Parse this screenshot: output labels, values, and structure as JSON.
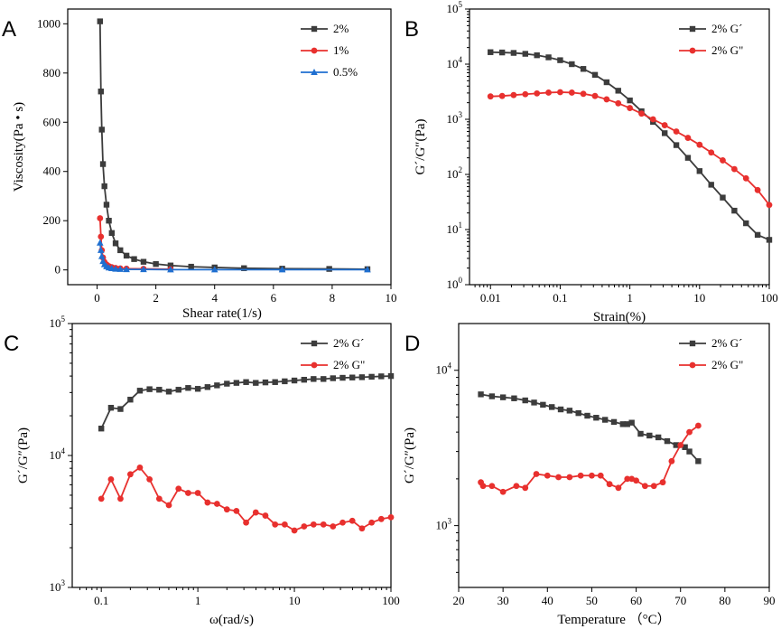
{
  "colors": {
    "black": "#3c3c3c",
    "red": "#e8302e",
    "blue": "#1f6fd0"
  },
  "chart_data": [
    {
      "panel": "A",
      "type": "line",
      "xlabel": "Shear rate(1/s)",
      "ylabel": "Viscosity(Pa • s)",
      "xscale": "linear",
      "yscale": "linear",
      "xlim": [
        -1,
        10
      ],
      "ylim": [
        -60,
        1060
      ],
      "xticks": [
        0,
        2,
        4,
        6,
        8,
        10
      ],
      "xticklabels": [
        "0",
        "2",
        "4",
        "6",
        "8",
        "10"
      ],
      "yticks": [
        0,
        200,
        400,
        600,
        800,
        1000
      ],
      "yticklabels": [
        "0",
        "200",
        "400",
        "600",
        "800",
        "1000"
      ],
      "legend_position": "top-right",
      "series": [
        {
          "name": "2%",
          "color": "#3c3c3c",
          "marker": "square",
          "x": [
            0.1,
            0.13,
            0.16,
            0.2,
            0.25,
            0.32,
            0.4,
            0.5,
            0.63,
            0.79,
            1.0,
            1.26,
            1.58,
            2.0,
            2.5,
            3.2,
            4.0,
            5.0,
            6.3,
            7.9,
            9.2
          ],
          "y": [
            1010,
            725,
            570,
            430,
            340,
            265,
            200,
            150,
            108,
            80,
            58,
            44,
            33,
            24,
            18,
            13,
            10,
            7,
            5,
            4,
            3
          ]
        },
        {
          "name": "1%",
          "color": "#e8302e",
          "marker": "circle",
          "x": [
            0.1,
            0.13,
            0.16,
            0.2,
            0.25,
            0.32,
            0.4,
            0.5,
            0.63,
            0.79,
            1.0,
            1.58,
            2.5
          ],
          "y": [
            210,
            135,
            80,
            50,
            32,
            22,
            15,
            11,
            8,
            6,
            5,
            4,
            3
          ]
        },
        {
          "name": "0.5%",
          "color": "#1f6fd0",
          "marker": "triangle",
          "x": [
            0.1,
            0.13,
            0.16,
            0.2,
            0.25,
            0.32,
            0.4,
            0.5,
            0.63,
            0.79,
            1.0,
            1.58,
            2.5,
            4.0,
            6.3,
            9.2
          ],
          "y": [
            110,
            80,
            55,
            35,
            22,
            14,
            9,
            6,
            4,
            3,
            2,
            2,
            1,
            1,
            1,
            1
          ]
        }
      ]
    },
    {
      "panel": "B",
      "type": "line",
      "xlabel": "Strain(%)",
      "ylabel": "G´/G″(Pa)",
      "xscale": "log",
      "yscale": "log",
      "xlim": [
        0.005,
        100
      ],
      "ylim": [
        1,
        100000
      ],
      "xticks": [
        0.01,
        0.1,
        1,
        10,
        100
      ],
      "xticklabels": [
        "0.01",
        "0.1",
        "1",
        "10",
        "100"
      ],
      "yticks": [
        1,
        10,
        100,
        1000,
        10000,
        100000
      ],
      "yticklabels": [
        "10^0",
        "10^1",
        "10^2",
        "10^3",
        "10^4",
        "10^5"
      ],
      "legend_position": "top-right",
      "series": [
        {
          "name": "2% G´",
          "color": "#3c3c3c",
          "marker": "square",
          "x": [
            0.01,
            0.0147,
            0.0215,
            0.0316,
            0.0464,
            0.0681,
            0.1,
            0.147,
            0.215,
            0.316,
            0.464,
            0.681,
            1,
            1.47,
            2.15,
            3.16,
            4.64,
            6.81,
            10,
            14.7,
            21.5,
            31.6,
            46.4,
            68.1,
            100
          ],
          "y": [
            16500,
            16300,
            16000,
            15400,
            14500,
            13300,
            11800,
            10000,
            8200,
            6400,
            4700,
            3300,
            2200,
            1400,
            900,
            560,
            340,
            200,
            115,
            65,
            38,
            22,
            13,
            8,
            6.5
          ]
        },
        {
          "name": "2% G\"",
          "color": "#e8302e",
          "marker": "circle",
          "x": [
            0.01,
            0.0147,
            0.0215,
            0.0316,
            0.0464,
            0.0681,
            0.1,
            0.147,
            0.215,
            0.316,
            0.464,
            0.681,
            1,
            1.47,
            2.15,
            3.16,
            4.64,
            6.81,
            10,
            14.7,
            21.5,
            31.6,
            46.4,
            68.1,
            100
          ],
          "y": [
            2600,
            2650,
            2750,
            2850,
            2950,
            3050,
            3100,
            3050,
            2900,
            2650,
            2300,
            1950,
            1600,
            1270,
            1000,
            780,
            600,
            460,
            345,
            250,
            180,
            125,
            85,
            52,
            28
          ]
        }
      ]
    },
    {
      "panel": "C",
      "type": "line",
      "xlabel": "ω(rad/s)",
      "ylabel": "G´/G″(Pa)",
      "xscale": "log",
      "yscale": "log",
      "xlim": [
        0.05,
        100
      ],
      "ylim": [
        1000,
        100000
      ],
      "xticks": [
        0.1,
        1,
        10,
        100
      ],
      "xticklabels": [
        "0.1",
        "1",
        "10",
        "100"
      ],
      "yticks": [
        1000,
        10000,
        100000
      ],
      "yticklabels": [
        "10^3",
        "10^4",
        "10^5"
      ],
      "legend_position": "top-right",
      "series": [
        {
          "name": "2% G´",
          "color": "#3c3c3c",
          "marker": "square",
          "x": [
            0.1,
            0.126,
            0.158,
            0.2,
            0.251,
            0.316,
            0.398,
            0.501,
            0.631,
            0.794,
            1.0,
            1.26,
            1.58,
            2.0,
            2.51,
            3.16,
            3.98,
            5.01,
            6.31,
            7.94,
            10,
            12.6,
            15.8,
            20,
            25.1,
            31.6,
            39.8,
            50.1,
            63.1,
            79.4,
            100
          ],
          "y": [
            16000,
            23000,
            22500,
            26500,
            31000,
            31800,
            31500,
            30500,
            31500,
            32500,
            32000,
            33000,
            34000,
            35000,
            35500,
            36000,
            35500,
            35800,
            36000,
            36500,
            37000,
            37500,
            38000,
            38000,
            38500,
            38800,
            39000,
            39200,
            39500,
            39800,
            40000
          ]
        },
        {
          "name": "2% G\"",
          "color": "#e8302e",
          "marker": "circle",
          "x": [
            0.1,
            0.126,
            0.158,
            0.2,
            0.251,
            0.316,
            0.398,
            0.501,
            0.631,
            0.794,
            1.0,
            1.26,
            1.58,
            2.0,
            2.51,
            3.16,
            3.98,
            5.01,
            6.31,
            7.94,
            10,
            12.6,
            15.8,
            20,
            25.1,
            31.6,
            39.8,
            50.1,
            63.1,
            79.4,
            100
          ],
          "y": [
            4700,
            6600,
            4700,
            7200,
            8100,
            6600,
            4700,
            4200,
            5600,
            5200,
            5200,
            4400,
            4300,
            3900,
            3800,
            3100,
            3700,
            3500,
            3000,
            3000,
            2700,
            2900,
            3000,
            3000,
            2900,
            3100,
            3200,
            2800,
            3100,
            3300,
            3400
          ]
        }
      ]
    },
    {
      "panel": "D",
      "type": "line",
      "xlabel": "Temperature （°C）",
      "ylabel": "G´/G″(Pa)",
      "xscale": "linear",
      "yscale": "log",
      "xlim": [
        20,
        90
      ],
      "ylim": [
        400,
        20000
      ],
      "xticks": [
        20,
        30,
        40,
        50,
        60,
        70,
        80,
        90
      ],
      "xticklabels": [
        "20",
        "30",
        "40",
        "50",
        "60",
        "70",
        "80",
        "90"
      ],
      "yticks": [
        1000,
        10000
      ],
      "yticklabels": [
        "10^3",
        "10^4"
      ],
      "legend_position": "top-right",
      "series": [
        {
          "name": "2% G´",
          "color": "#3c3c3c",
          "marker": "square",
          "x": [
            25,
            27.5,
            30,
            32.5,
            35,
            37,
            39,
            41,
            43,
            45,
            47,
            49,
            51,
            53,
            55,
            57,
            58,
            59,
            61,
            63,
            65,
            67,
            69,
            71,
            72,
            74
          ],
          "y": [
            7000,
            6800,
            6700,
            6600,
            6400,
            6200,
            6000,
            5800,
            5600,
            5500,
            5300,
            5100,
            4950,
            4800,
            4650,
            4500,
            4500,
            4600,
            3900,
            3800,
            3700,
            3500,
            3300,
            3200,
            3000,
            2600
          ]
        },
        {
          "name": "2% G\"",
          "color": "#e8302e",
          "marker": "circle",
          "x": [
            25,
            25.5,
            27.5,
            30,
            33,
            35,
            37.5,
            40,
            42.5,
            45,
            47.5,
            50,
            52,
            54,
            56,
            58,
            59,
            60,
            62,
            64,
            66,
            68,
            70,
            72,
            74
          ],
          "y": [
            1900,
            1800,
            1800,
            1650,
            1800,
            1750,
            2150,
            2100,
            2050,
            2050,
            2100,
            2100,
            2100,
            1850,
            1750,
            2000,
            2000,
            1950,
            1800,
            1800,
            1900,
            2600,
            3300,
            4000,
            4400
          ]
        }
      ]
    }
  ]
}
